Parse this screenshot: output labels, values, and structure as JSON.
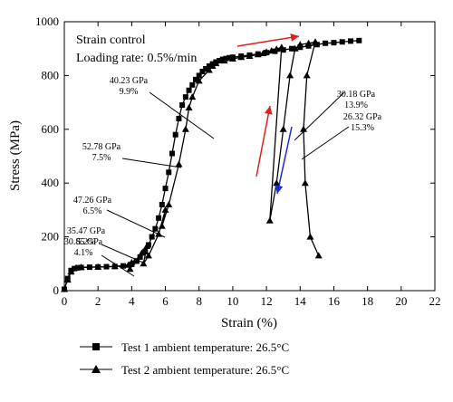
{
  "chart_data": {
    "type": "line",
    "title": "",
    "xlabel": "Strain (%)",
    "ylabel": "Stress (MPa)",
    "xlim": [
      0,
      22
    ],
    "ylim": [
      0,
      1000
    ],
    "xticks": [
      "0",
      "2",
      "4",
      "6",
      "8",
      "10",
      "12",
      "14",
      "16",
      "18",
      "20",
      "22"
    ],
    "yticks": [
      "0",
      "200",
      "400",
      "600",
      "800",
      "1000"
    ],
    "grid": false,
    "legend_position": "bottom",
    "info_lines": [
      "Strain control",
      "Loading rate: 0.5%/min"
    ],
    "series": [
      {
        "name": "Test 1 ambient temperature: 26.5°C",
        "marker": "square",
        "color": "#000000",
        "x": [
          0,
          0.2,
          0.4,
          0.6,
          0.8,
          1.0,
          1.5,
          2.0,
          2.5,
          3.0,
          3.5,
          4.0,
          4.3,
          4.5,
          4.8,
          5.0,
          5.2,
          5.4,
          5.6,
          5.8,
          6.0,
          6.2,
          6.4,
          6.6,
          6.8,
          7.0,
          7.2,
          7.4,
          7.6,
          7.8,
          8.0,
          8.2,
          8.4,
          8.6,
          8.8,
          9.0,
          9.2,
          9.4,
          9.6,
          9.8,
          10.0,
          10.5,
          11.0,
          11.5,
          12.0,
          12.5,
          13.0,
          13.5,
          14.0,
          14.5,
          15.0,
          15.5,
          16.0,
          16.5,
          17.0,
          17.5
        ],
        "y": [
          5,
          45,
          75,
          82,
          85,
          86,
          87,
          88,
          89,
          90,
          92,
          98,
          110,
          125,
          145,
          170,
          200,
          230,
          270,
          320,
          380,
          440,
          510,
          580,
          640,
          690,
          720,
          745,
          765,
          785,
          800,
          815,
          825,
          835,
          843,
          850,
          855,
          860,
          863,
          866,
          868,
          872,
          876,
          880,
          885,
          890,
          895,
          900,
          905,
          910,
          915,
          920,
          922,
          925,
          928,
          930
        ]
      },
      {
        "name": "Test 2 ambient temperature: 26.5°C",
        "marker": "triangle",
        "color": "#000000",
        "x": [
          0,
          0.2,
          0.4,
          0.7,
          1.0,
          2.0,
          3.0,
          3.8,
          4.0,
          3.9,
          4.2,
          4.6,
          4.9,
          4.7,
          5.0,
          5.6,
          6.0,
          5.8,
          6.2,
          6.8,
          7.2,
          7.4,
          7.6,
          8.0,
          8.6,
          8.8,
          9.0,
          9.5,
          10.0,
          10.5,
          11.0,
          11.5,
          11.8,
          12.0,
          12.3,
          12.6,
          12.9,
          12.2,
          12.6,
          13.0,
          13.4,
          13.7,
          14.0,
          14.5,
          14.9,
          14.4,
          14.2,
          14.3,
          14.6,
          15.1
        ],
        "y": [
          5,
          40,
          70,
          85,
          87,
          88,
          90,
          95,
          105,
          80,
          110,
          140,
          165,
          100,
          130,
          210,
          300,
          240,
          320,
          470,
          600,
          680,
          720,
          780,
          820,
          835,
          845,
          855,
          862,
          868,
          872,
          878,
          882,
          888,
          892,
          898,
          905,
          260,
          400,
          600,
          800,
          900,
          915,
          920,
          925,
          800,
          600,
          400,
          200,
          130
        ],
        "colors_note": "red and blue arrows indicate loading/unloading direction"
      }
    ],
    "annotations": [
      {
        "modulus": "40.23 GPa",
        "strain": "9.9%"
      },
      {
        "modulus": "52.78 GPa",
        "strain": "7.5%"
      },
      {
        "modulus": "47.26 GPa",
        "strain": "6.5%"
      },
      {
        "modulus": "35.47 GPa",
        "strain": "5.2%"
      },
      {
        "modulus": "30.85 GPa",
        "strain": "4.1%"
      },
      {
        "modulus": "30.18 GPa",
        "strain": "13.9%"
      },
      {
        "modulus": "26.32 GPa",
        "strain": "15.3%"
      }
    ],
    "arrow_colors": {
      "red": "#e0201c",
      "blue": "#1a2ad6"
    }
  }
}
